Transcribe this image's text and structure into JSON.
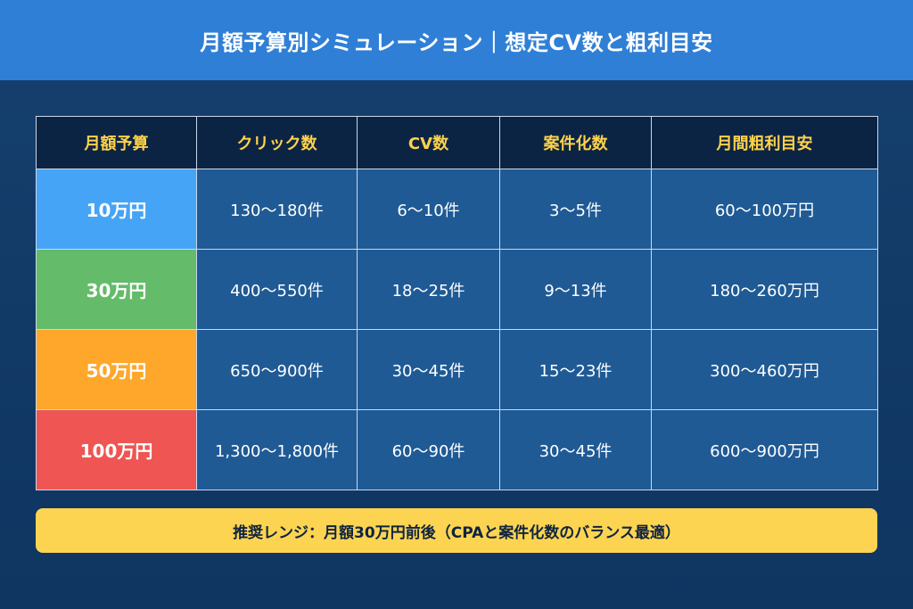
{
  "header": {
    "title": "月額予算別シミュレーション｜想定CV数と粗利目安"
  },
  "table": {
    "headers": [
      "月額予算",
      "クリック数",
      "CV数",
      "案件化数",
      "月間粗利目安"
    ],
    "rows": [
      {
        "budget": "10万円",
        "clicks": "130〜180件",
        "cv": "6〜10件",
        "deals": "3〜5件",
        "profit": "60〜100万円",
        "color": "#45a4f5"
      },
      {
        "budget": "30万円",
        "clicks": "400〜550件",
        "cv": "18〜25件",
        "deals": "9〜13件",
        "profit": "180〜260万円",
        "color": "#64bb69"
      },
      {
        "budget": "50万円",
        "clicks": "650〜900件",
        "cv": "30〜45件",
        "deals": "15〜23件",
        "profit": "300〜460万円",
        "color": "#fea72a"
      },
      {
        "budget": "100万円",
        "clicks": "1,300〜1,800件",
        "cv": "60〜90件",
        "deals": "30〜45件",
        "profit": "600〜900万円",
        "color": "#ef5552"
      }
    ],
    "header_bg": "#0c2444",
    "header_text_color": "#ffd24a",
    "cell_bg": "#1f5a95"
  },
  "footer": {
    "text": "推奨レンジ：月額30万円前後（CPAと案件化数のバランス最適）",
    "bg": "#fcd451"
  }
}
